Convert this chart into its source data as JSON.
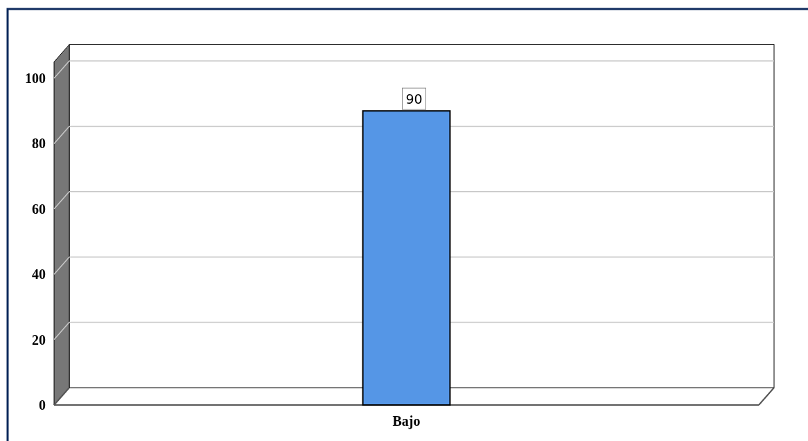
{
  "chart_data": {
    "type": "bar",
    "categories": [
      "Bajo"
    ],
    "values": [
      90
    ],
    "color": "#5596e6",
    "ylim": [
      0,
      105
    ],
    "yticks": [
      0,
      20,
      40,
      60,
      80,
      100
    ],
    "grid": "y",
    "data_labels": true
  }
}
